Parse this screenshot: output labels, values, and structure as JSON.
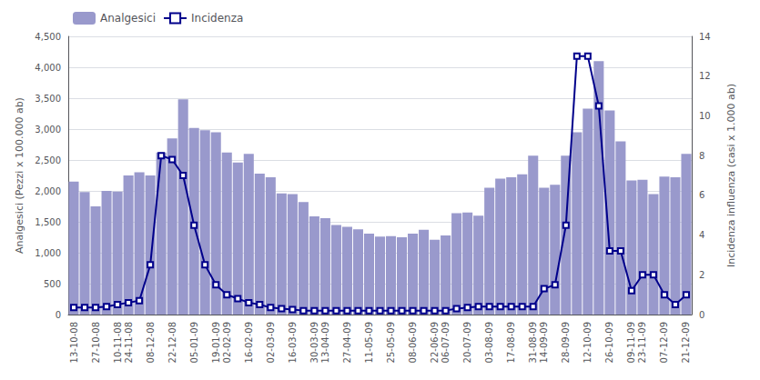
{
  "chart_data": {
    "type": "bar",
    "categories": [
      "13-10-08",
      null,
      "27-10-08",
      null,
      "10-11-08",
      "24-11-08",
      null,
      "08-12-08",
      null,
      "22-12-08",
      null,
      "05-01-09",
      null,
      "19-01-09",
      "02-02-09",
      null,
      "16-02-09",
      null,
      "02-03-09",
      null,
      "16-03-09",
      null,
      "30-03-09",
      "13-04-09",
      null,
      "27-04-09",
      null,
      "11-05-09",
      null,
      "25-05-09",
      null,
      "08-06-09",
      null,
      "22-06-09",
      "06-07-09",
      null,
      "20-07-09",
      null,
      "03-08-09",
      null,
      "17-08-09",
      null,
      "31-08-09",
      "14-09-09",
      null,
      "28-09-09",
      null,
      "12-10-09",
      null,
      "26-10-09",
      null,
      "09-11-09",
      "23-11-09",
      null,
      "07-12-09",
      null,
      "21-12-09"
    ],
    "series": [
      {
        "name": "Analgesici",
        "type": "bar",
        "color": "#9999cc",
        "values": [
          2150,
          1980,
          1750,
          2000,
          1990,
          2250,
          2300,
          2250,
          2620,
          2850,
          3480,
          3020,
          2980,
          2950,
          2620,
          2460,
          2600,
          2280,
          2220,
          1960,
          1950,
          1820,
          1590,
          1560,
          1450,
          1420,
          1380,
          1310,
          1260,
          1270,
          1250,
          1310,
          1370,
          1210,
          1280,
          1640,
          1650,
          1600,
          2050,
          2200,
          2220,
          2270,
          2570,
          2050,
          2100,
          2570,
          2950,
          3330,
          4100,
          3300,
          2800,
          2170,
          2180,
          1950,
          2230,
          2220,
          2600
        ]
      },
      {
        "name": "Incidenza",
        "type": "line",
        "color": "#00008B",
        "marker": "square",
        "axis": "y2",
        "values": [
          0.35,
          0.35,
          0.35,
          0.4,
          0.5,
          0.6,
          0.7,
          2.5,
          8.0,
          7.8,
          7.0,
          4.5,
          2.5,
          1.5,
          1.0,
          0.8,
          0.6,
          0.5,
          0.35,
          0.3,
          0.25,
          0.2,
          0.2,
          0.2,
          0.2,
          0.2,
          0.2,
          0.2,
          0.2,
          0.2,
          0.2,
          0.2,
          0.2,
          0.2,
          0.2,
          0.3,
          0.35,
          0.4,
          0.4,
          0.4,
          0.4,
          0.4,
          0.4,
          1.3,
          1.5,
          4.5,
          13.0,
          13.0,
          10.5,
          3.2,
          3.2,
          1.2,
          2.0,
          2.0,
          1.0,
          0.5,
          1.0
        ]
      }
    ],
    "ylabel": "Analgesici (Pezzi x 100.000 ab)",
    "y2label": "Incidenza influenza (casi x 1.000 ab)",
    "ylim": [
      0,
      4500
    ],
    "yticks": [
      0,
      500,
      1000,
      1500,
      2000,
      2500,
      3000,
      3500,
      4000,
      4500
    ],
    "y2lim": [
      0,
      14
    ],
    "y2ticks": [
      0,
      2,
      4,
      6,
      8,
      10,
      12,
      14
    ],
    "grid": true,
    "legend": "upper left"
  }
}
